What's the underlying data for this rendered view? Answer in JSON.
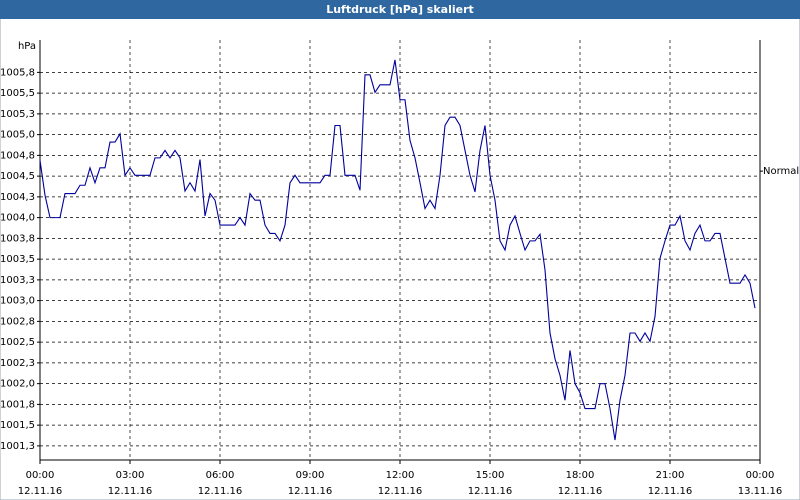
{
  "chart_data": {
    "type": "line",
    "title": "Luftdruck [hPa] skaliert",
    "y_label": "hPa",
    "xlim": [
      0,
      1440
    ],
    "ylim": [
      1001.08,
      1006.14
    ],
    "grid": true,
    "xticks": [
      {
        "value": 0,
        "label": "00:00",
        "date": "12.11.16"
      },
      {
        "value": 180,
        "label": "03:00",
        "date": "12.11.16"
      },
      {
        "value": 360,
        "label": "06:00",
        "date": "12.11.16"
      },
      {
        "value": 540,
        "label": "09:00",
        "date": "12.11.16"
      },
      {
        "value": 720,
        "label": "12:00",
        "date": "12.11.16"
      },
      {
        "value": 900,
        "label": "15:00",
        "date": "12.11.16"
      },
      {
        "value": 1080,
        "label": "18:00",
        "date": "12.11.16"
      },
      {
        "value": 1260,
        "label": "21:00",
        "date": "12.11.16"
      },
      {
        "value": 1440,
        "label": "00:00",
        "date": "13.11.16"
      }
    ],
    "yticks": [
      {
        "value": 1001.25,
        "label": "1001,3"
      },
      {
        "value": 1001.5,
        "label": "1001,5"
      },
      {
        "value": 1001.75,
        "label": "1001,8"
      },
      {
        "value": 1002.0,
        "label": "1002,0"
      },
      {
        "value": 1002.25,
        "label": "1002,3"
      },
      {
        "value": 1002.5,
        "label": "1002,5"
      },
      {
        "value": 1002.75,
        "label": "1002,8"
      },
      {
        "value": 1003.0,
        "label": "1003,0"
      },
      {
        "value": 1003.25,
        "label": "1003,3"
      },
      {
        "value": 1003.5,
        "label": "1003,5"
      },
      {
        "value": 1003.75,
        "label": "1003,8"
      },
      {
        "value": 1004.0,
        "label": "1004,0"
      },
      {
        "value": 1004.25,
        "label": "1004,3"
      },
      {
        "value": 1004.5,
        "label": "1004,5"
      },
      {
        "value": 1004.75,
        "label": "1004,8"
      },
      {
        "value": 1005.0,
        "label": "1005,0"
      },
      {
        "value": 1005.25,
        "label": "1005,3"
      },
      {
        "value": 1005.5,
        "label": "1005,5"
      },
      {
        "value": 1005.75,
        "label": "1005,8"
      }
    ],
    "reference_line": {
      "label": "Normal",
      "value": 1004.56
    },
    "x": [
      0,
      10,
      20,
      30,
      40,
      50,
      60,
      70,
      80,
      90,
      100,
      110,
      120,
      130,
      140,
      150,
      160,
      170,
      180,
      190,
      200,
      210,
      220,
      230,
      240,
      250,
      260,
      270,
      280,
      290,
      300,
      310,
      320,
      330,
      340,
      350,
      360,
      370,
      380,
      390,
      400,
      410,
      420,
      430,
      440,
      450,
      460,
      470,
      480,
      490,
      500,
      510,
      520,
      530,
      540,
      550,
      560,
      570,
      580,
      590,
      600,
      610,
      620,
      630,
      640,
      650,
      660,
      670,
      680,
      690,
      700,
      710,
      720,
      730,
      740,
      750,
      760,
      770,
      780,
      790,
      800,
      810,
      820,
      830,
      840,
      850,
      860,
      870,
      880,
      890,
      900,
      910,
      920,
      930,
      940,
      950,
      960,
      970,
      980,
      990,
      1000,
      1010,
      1020,
      1030,
      1040,
      1050,
      1060,
      1070,
      1080,
      1090,
      1100,
      1110,
      1120,
      1130,
      1140,
      1150,
      1160,
      1170,
      1180,
      1190,
      1200,
      1210,
      1220,
      1230,
      1240,
      1250,
      1260,
      1270,
      1280,
      1290,
      1300,
      1310,
      1320,
      1330,
      1340,
      1350,
      1360,
      1370,
      1380,
      1390,
      1400,
      1410,
      1420,
      1430
    ],
    "series": [
      {
        "color": "#00009c",
        "values": [
          1004.69,
          1004.27,
          1004.0,
          1004.0,
          1004.0,
          1004.29,
          1004.29,
          1004.29,
          1004.39,
          1004.39,
          1004.6,
          1004.42,
          1004.6,
          1004.6,
          1004.91,
          1004.91,
          1005.01,
          1004.51,
          1004.6,
          1004.51,
          1004.51,
          1004.51,
          1004.51,
          1004.72,
          1004.72,
          1004.81,
          1004.72,
          1004.81,
          1004.72,
          1004.32,
          1004.42,
          1004.32,
          1004.7,
          1004.02,
          1004.29,
          1004.21,
          1003.91,
          1003.91,
          1003.91,
          1003.91,
          1004.0,
          1003.91,
          1004.29,
          1004.21,
          1004.21,
          1003.91,
          1003.81,
          1003.81,
          1003.72,
          1003.91,
          1004.42,
          1004.51,
          1004.42,
          1004.42,
          1004.42,
          1004.42,
          1004.42,
          1004.51,
          1004.51,
          1005.11,
          1005.11,
          1004.51,
          1004.51,
          1004.51,
          1004.33,
          1005.72,
          1005.72,
          1005.51,
          1005.6,
          1005.6,
          1005.6,
          1005.9,
          1005.42,
          1005.42,
          1004.93,
          1004.72,
          1004.42,
          1004.11,
          1004.21,
          1004.11,
          1004.51,
          1005.11,
          1005.21,
          1005.21,
          1005.11,
          1004.81,
          1004.51,
          1004.31,
          1004.81,
          1005.11,
          1004.51,
          1004.21,
          1003.72,
          1003.61,
          1003.91,
          1004.02,
          1003.81,
          1003.61,
          1003.72,
          1003.72,
          1003.8,
          1003.37,
          1002.61,
          1002.3,
          1002.1,
          1001.8,
          1002.4,
          1002.0,
          1001.89,
          1001.7,
          1001.7,
          1001.7,
          1002.0,
          1002.0,
          1001.7,
          1001.32,
          1001.8,
          1002.1,
          1002.61,
          1002.61,
          1002.51,
          1002.61,
          1002.51,
          1002.81,
          1003.51,
          1003.72,
          1003.91,
          1003.91,
          1004.02,
          1003.72,
          1003.61,
          1003.81,
          1003.91,
          1003.72,
          1003.72,
          1003.81,
          1003.81,
          1003.51,
          1003.21,
          1003.21,
          1003.21,
          1003.31,
          1003.21,
          1002.91
        ]
      }
    ]
  }
}
